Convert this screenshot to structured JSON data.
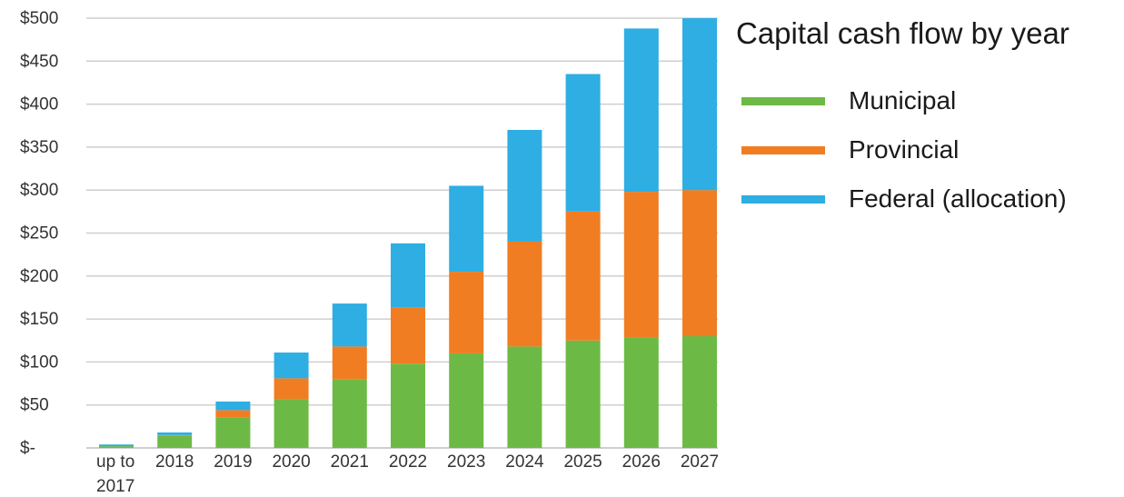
{
  "chart_data": {
    "type": "bar",
    "stacked": true,
    "title": "Capital cash flow by year",
    "xlabel": "",
    "ylabel": "",
    "ylim": [
      0,
      500
    ],
    "y_ticks": [
      {
        "value": 0,
        "label": "$-"
      },
      {
        "value": 50,
        "label": "$50"
      },
      {
        "value": 100,
        "label": "$100"
      },
      {
        "value": 150,
        "label": "$150"
      },
      {
        "value": 200,
        "label": "$200"
      },
      {
        "value": 250,
        "label": "$250"
      },
      {
        "value": 300,
        "label": "$300"
      },
      {
        "value": 350,
        "label": "$350"
      },
      {
        "value": 400,
        "label": "$400"
      },
      {
        "value": 450,
        "label": "$450"
      },
      {
        "value": 500,
        "label": "$500"
      }
    ],
    "categories": [
      "up to\n2017",
      "2018",
      "2019",
      "2020",
      "2021",
      "2022",
      "2023",
      "2024",
      "2025",
      "2026",
      "2027"
    ],
    "grid": true,
    "legend_position": "right",
    "series": [
      {
        "name": "Municipal",
        "color": "#6cba45",
        "values": [
          2,
          14,
          35,
          57,
          80,
          98,
          110,
          118,
          125,
          128,
          130
        ]
      },
      {
        "name": "Provincial",
        "color": "#f07d22",
        "values": [
          0,
          1,
          9,
          24,
          38,
          65,
          95,
          122,
          150,
          170,
          170
        ]
      },
      {
        "name": "Federal (allocation)",
        "color": "#2eaee2",
        "values": [
          2,
          3,
          10,
          30,
          50,
          75,
          100,
          130,
          160,
          190,
          200
        ]
      }
    ]
  }
}
